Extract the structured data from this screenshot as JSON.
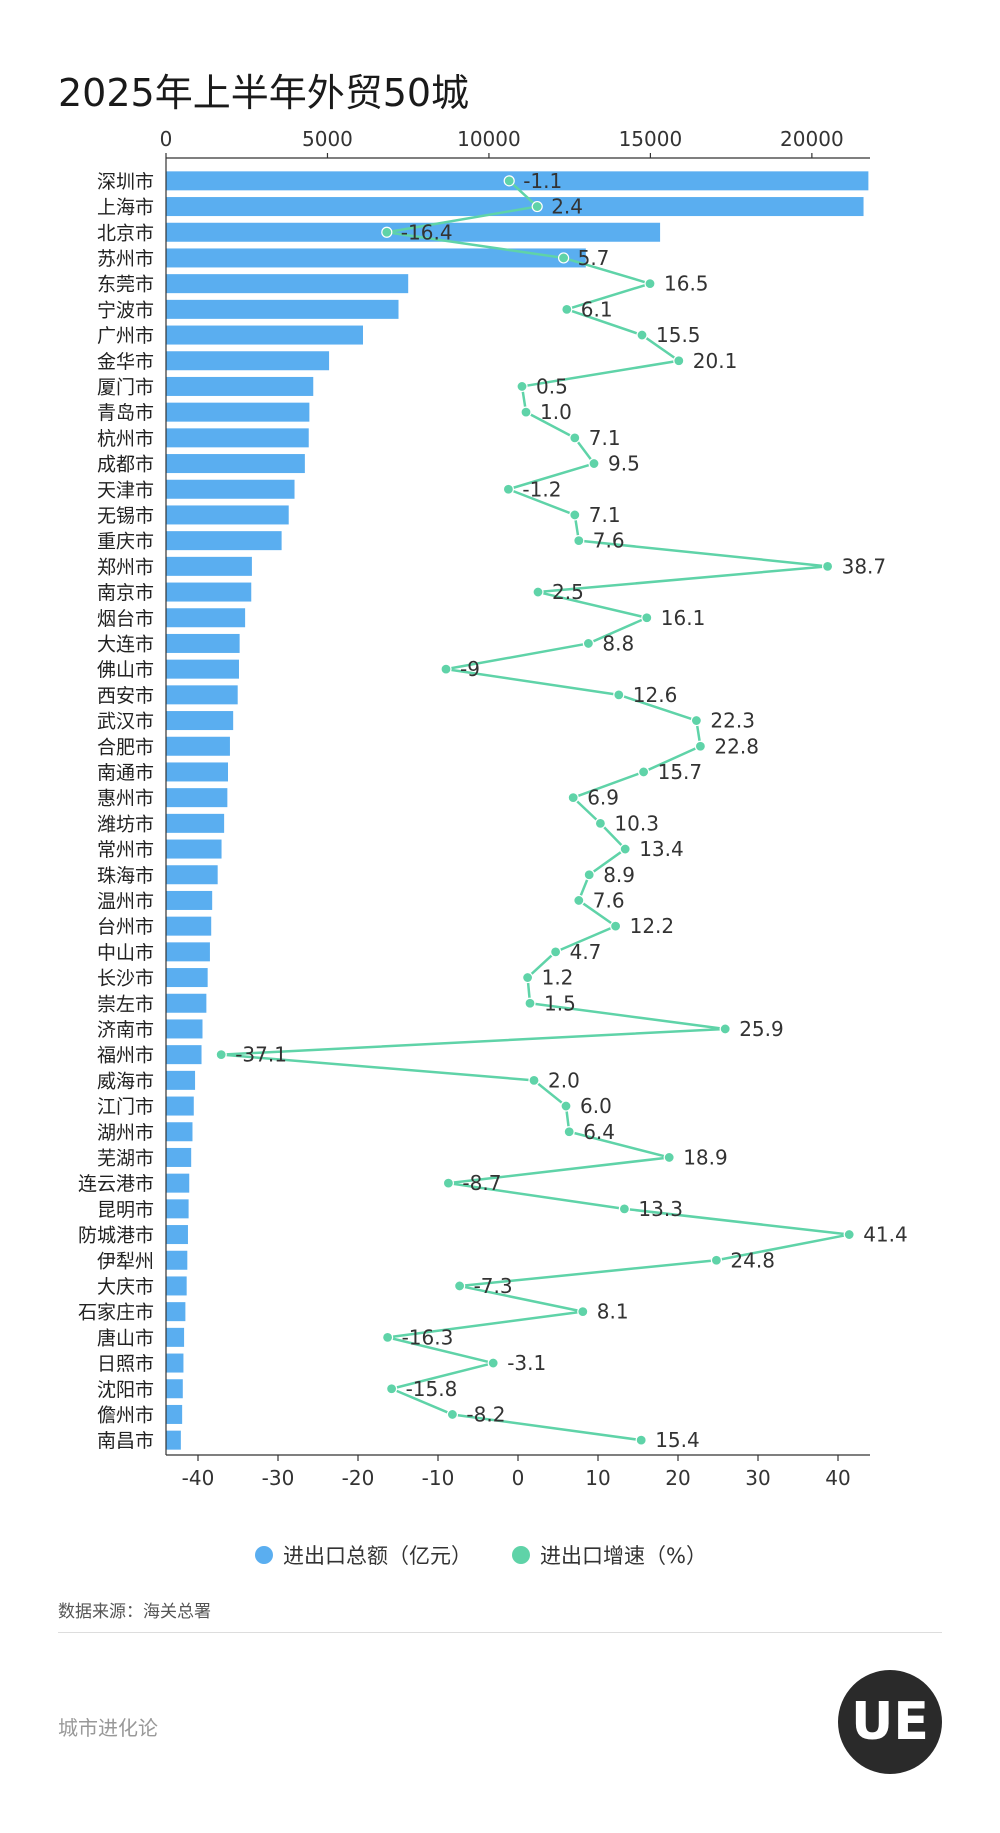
{
  "title": "2025年上半年外贸50城",
  "source_text": "数据来源：海关总署",
  "footer_brand": "城市进化论",
  "logo_text": "UE",
  "colors": {
    "bar": "#5aaef0",
    "line": "#5fd3a8",
    "axis": "#333333"
  },
  "chart_data": {
    "type": "bar+line",
    "categories": [
      "深圳市",
      "上海市",
      "北京市",
      "苏州市",
      "东莞市",
      "宁波市",
      "广州市",
      "金华市",
      "厦门市",
      "青岛市",
      "杭州市",
      "成都市",
      "天津市",
      "无锡市",
      "重庆市",
      "郑州市",
      "南京市",
      "烟台市",
      "大连市",
      "佛山市",
      "西安市",
      "武汉市",
      "合肥市",
      "南通市",
      "惠州市",
      "潍坊市",
      "常州市",
      "珠海市",
      "温州市",
      "台州市",
      "中山市",
      "长沙市",
      "崇左市",
      "济南市",
      "福州市",
      "威海市",
      "江门市",
      "湖州市",
      "芜湖市",
      "连云港市",
      "昆明市",
      "防城港市",
      "伊犁州",
      "大庆市",
      "石家庄市",
      "唐山市",
      "日照市",
      "沈阳市",
      "儋州市",
      "南昌市"
    ],
    "series": [
      {
        "name": "进出口总额（亿元）",
        "axis": "top",
        "values": [
          21750,
          21600,
          15300,
          13000,
          7500,
          7200,
          6100,
          5050,
          4560,
          4440,
          4420,
          4300,
          3980,
          3800,
          3580,
          2660,
          2640,
          2450,
          2280,
          2260,
          2220,
          2080,
          1980,
          1920,
          1900,
          1800,
          1720,
          1600,
          1430,
          1400,
          1360,
          1290,
          1250,
          1130,
          1100,
          900,
          860,
          820,
          780,
          720,
          700,
          680,
          660,
          640,
          600,
          560,
          540,
          520,
          500,
          460
        ]
      },
      {
        "name": "进出口增速（%）",
        "axis": "bottom",
        "values": [
          -1.1,
          2.4,
          -16.4,
          5.7,
          16.5,
          6.1,
          15.5,
          20.1,
          0.5,
          1.0,
          7.1,
          9.5,
          -1.2,
          7.1,
          7.6,
          38.7,
          2.5,
          16.1,
          8.8,
          -9,
          12.6,
          22.3,
          22.8,
          15.7,
          6.9,
          10.3,
          13.4,
          8.9,
          7.6,
          12.2,
          4.7,
          1.2,
          1.5,
          25.9,
          -37.1,
          2.0,
          6.0,
          6.4,
          18.9,
          -8.7,
          13.3,
          41.4,
          24.8,
          -7.3,
          8.1,
          -16.3,
          -3.1,
          -15.8,
          -8.2,
          15.4
        ],
        "labels": [
          "-1.1",
          "2.4",
          "-16.4",
          "5.7",
          "16.5",
          "6.1",
          "15.5",
          "20.1",
          "0.5",
          "1.0",
          "7.1",
          "9.5",
          "-1.2",
          "7.1",
          "7.6",
          "38.7",
          "2.5",
          "16.1",
          "8.8",
          "-9",
          "12.6",
          "22.3",
          "22.8",
          "15.7",
          "6.9",
          "10.3",
          "13.4",
          "8.9",
          "7.6",
          "12.2",
          "4.7",
          "1.2",
          "1.5",
          "25.9",
          "-37.1",
          "2.0",
          "6.0",
          "6.4",
          "18.9",
          "-8.7",
          "13.3",
          "41.4",
          "24.8",
          "-7.3",
          "8.1",
          "-16.3",
          "-3.1",
          "-15.8",
          "-8.2",
          "15.4"
        ]
      }
    ],
    "top_axis": {
      "range": [
        0,
        21800
      ],
      "ticks": [
        "0",
        "5000",
        "10000",
        "15000",
        "20000"
      ],
      "tick_values": [
        0,
        5000,
        10000,
        15000,
        20000
      ]
    },
    "bottom_axis": {
      "range": [
        -44,
        44
      ],
      "ticks": [
        "-40",
        "-30",
        "-20",
        "-10",
        "0",
        "10",
        "20",
        "30",
        "40"
      ],
      "tick_values": [
        -40,
        -30,
        -20,
        -10,
        0,
        10,
        20,
        30,
        40
      ]
    },
    "legend_position": "bottom"
  }
}
